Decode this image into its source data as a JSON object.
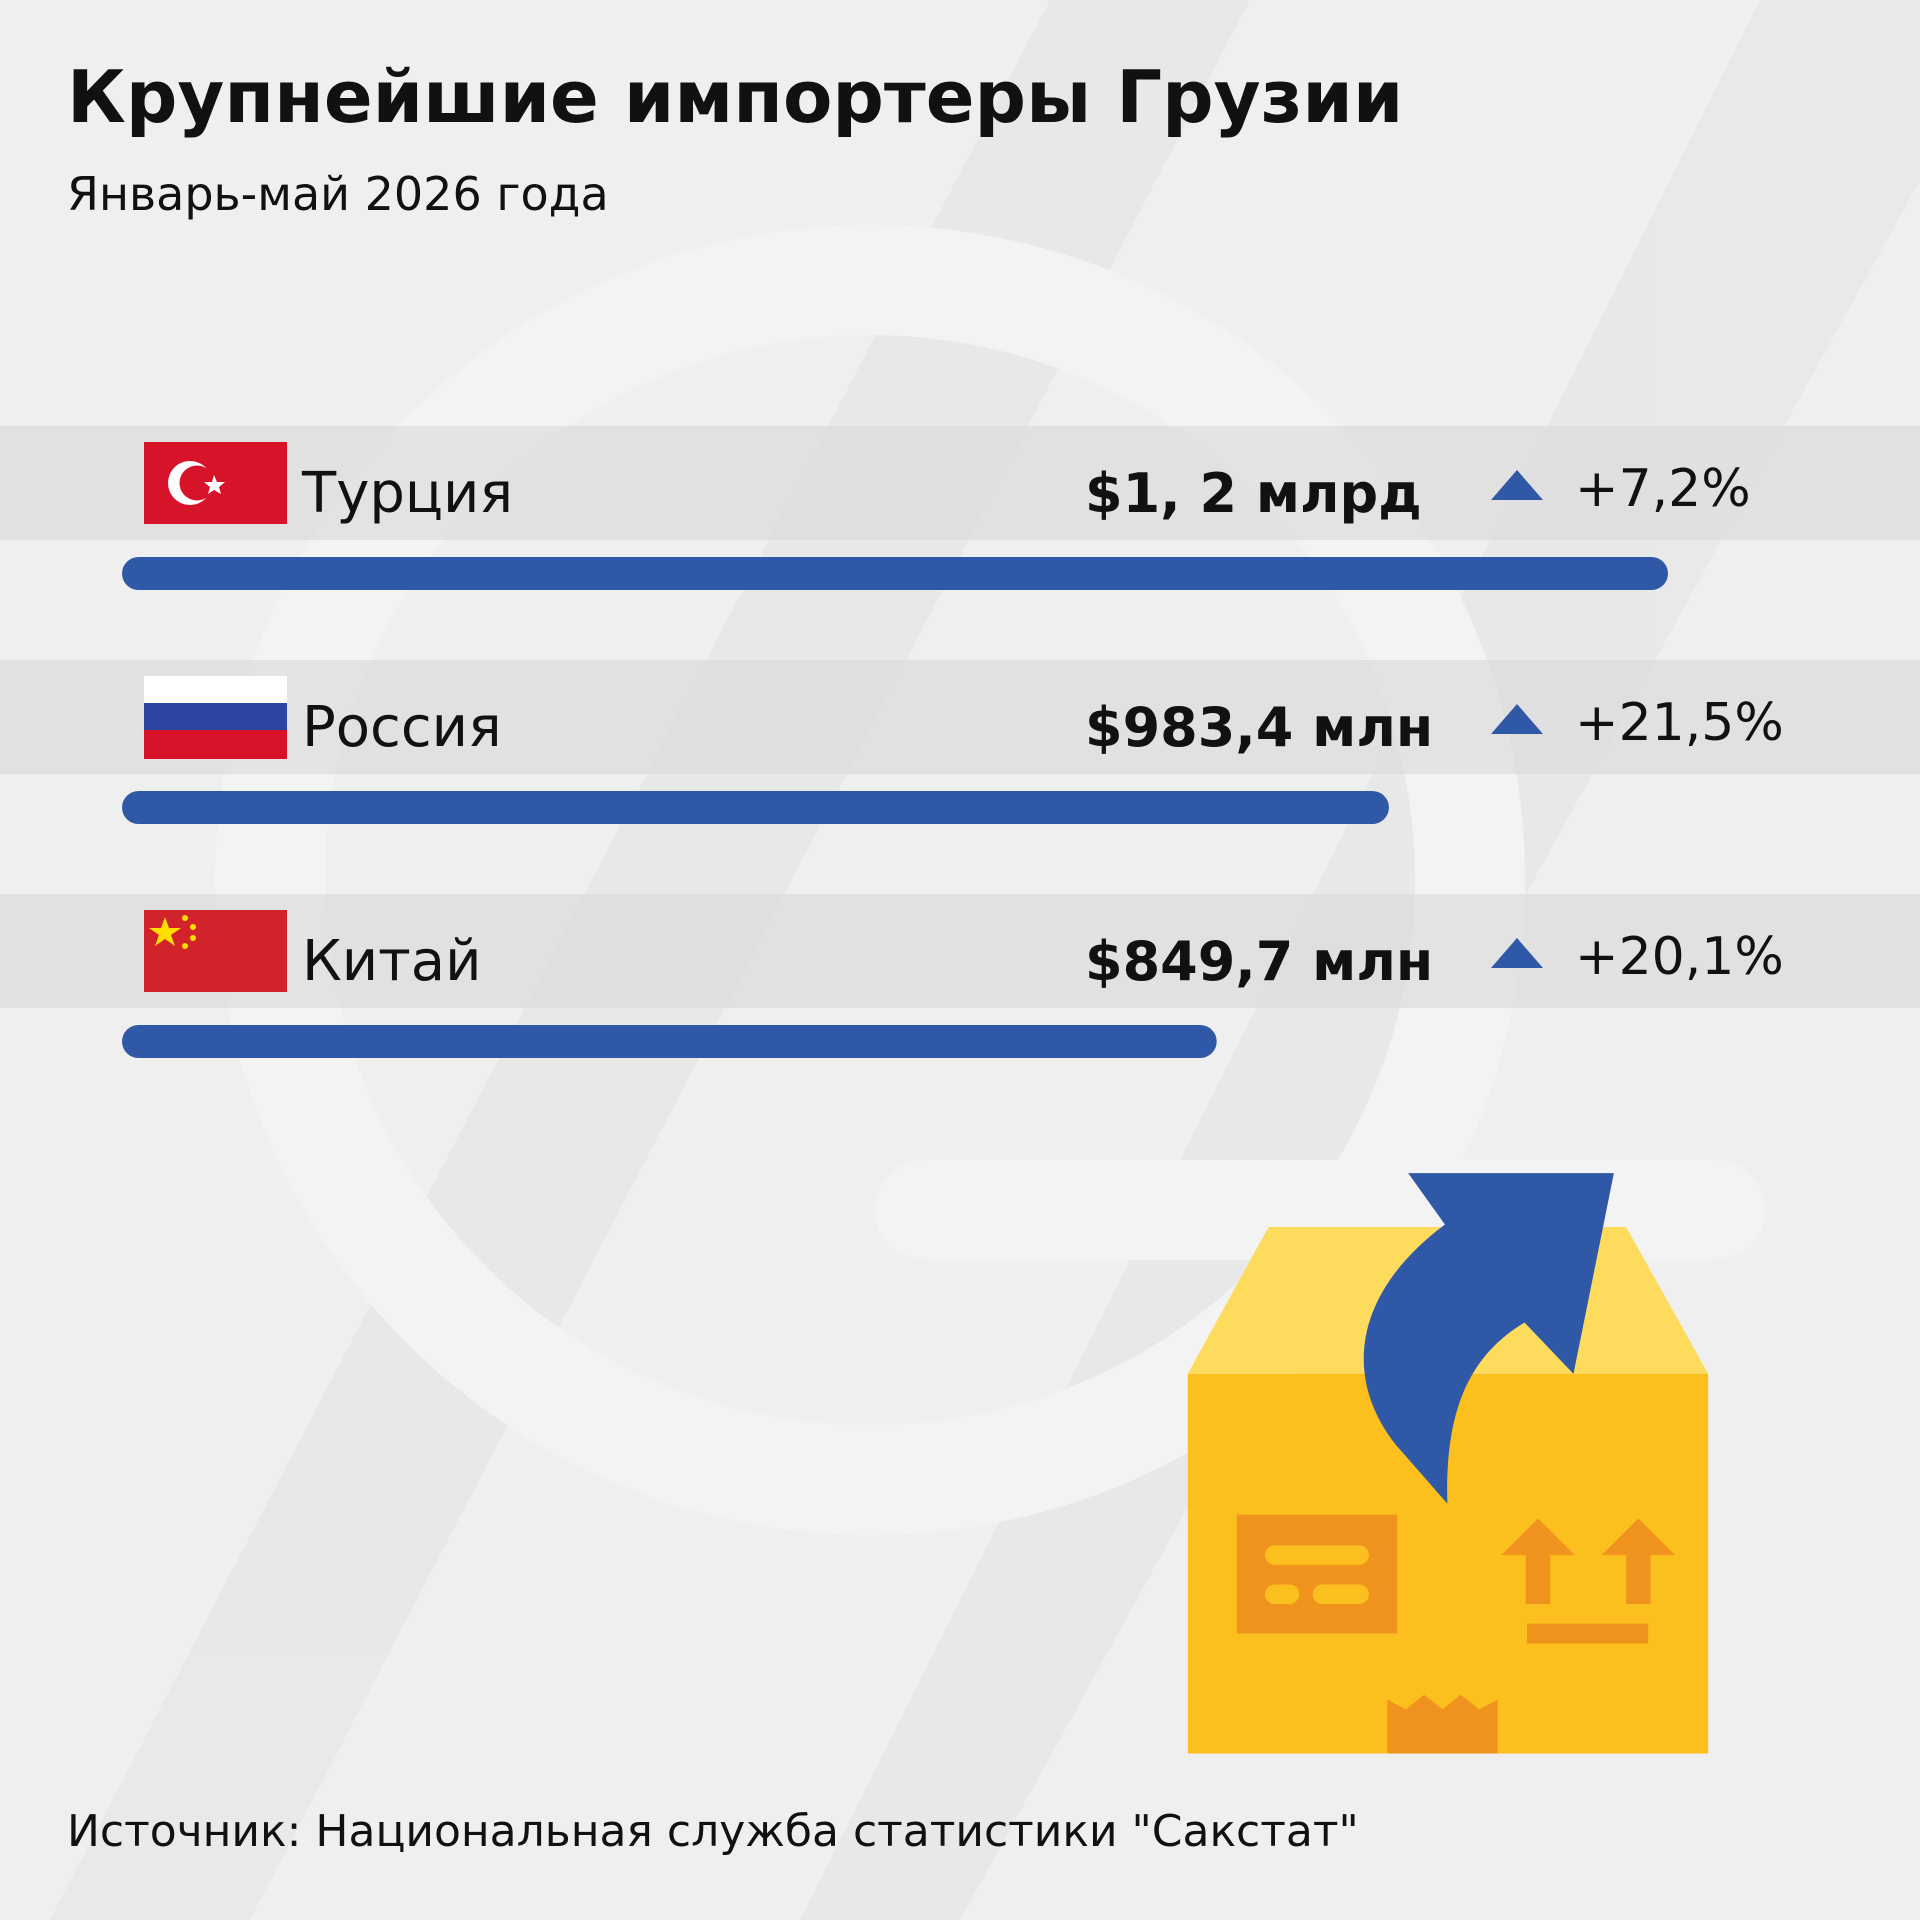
{
  "chart_data": {
    "type": "bar",
    "orientation": "horizontal",
    "title": "Крупнейшие импортеры Грузии",
    "subtitle": "Январь-май 2026 года",
    "categories": [
      "Турция",
      "Россия",
      "Китай"
    ],
    "values": [
      1200,
      983.4,
      849.7
    ],
    "value_labels": [
      "$1, 2 млрд",
      "$983,4 млн",
      "$849,7 млн"
    ],
    "change_labels": [
      "+7,2%",
      "+21,5%",
      "+20,1%"
    ],
    "xlim": [
      0,
      1200
    ],
    "color": "#2f58a6",
    "change_color": "#2f58a6",
    "source": "Источник: Национальная служба статистики \"Сакстат\""
  }
}
